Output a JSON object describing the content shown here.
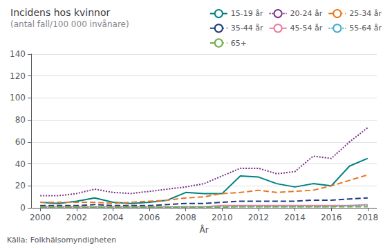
{
  "chart_data": {
    "type": "line",
    "title": "Incidens hos kvinnor",
    "subtitle": "(antal fall/100 000 invånare)",
    "xlabel": "År",
    "annotations": [
      "Källa: Folkhälsomyndigheten"
    ],
    "x": [
      2000,
      2001,
      2002,
      2003,
      2004,
      2005,
      2006,
      2007,
      2008,
      2009,
      2010,
      2011,
      2012,
      2013,
      2014,
      2015,
      2016,
      2017,
      2018
    ],
    "xlim": [
      1999.5,
      2018.5
    ],
    "xticks": [
      2000,
      2002,
      2004,
      2006,
      2008,
      2010,
      2012,
      2014,
      2016,
      2018
    ],
    "ylim": [
      0,
      140
    ],
    "yticks": [
      0,
      20,
      40,
      60,
      80,
      100,
      120,
      140
    ],
    "grid": true,
    "legend": "upper right",
    "series": [
      {
        "name": "15-19 år",
        "color": "#008080",
        "line_style": "solid",
        "values": [
          5,
          4,
          6,
          9,
          5,
          4,
          5,
          7,
          14,
          13,
          13,
          29,
          28,
          22,
          19,
          22,
          20,
          38,
          45
        ]
      },
      {
        "name": "20-24 år",
        "color": "#7B2D8B",
        "line_style": "dotted",
        "values": [
          11,
          11,
          13,
          17,
          14,
          13,
          15,
          17,
          19,
          22,
          29,
          36,
          36,
          31,
          33,
          47,
          45,
          60,
          73
        ]
      },
      {
        "name": "25-34 år",
        "color": "#E87722",
        "line_style": "dashed",
        "values": [
          5,
          5,
          5,
          5,
          4,
          5,
          6,
          7,
          9,
          10,
          13,
          14,
          16,
          14,
          15,
          16,
          20,
          25,
          30
        ]
      },
      {
        "name": "35-44 år",
        "color": "#1F3A7A",
        "line_style": "dashed",
        "values": [
          2,
          2,
          2,
          3,
          2,
          2,
          2,
          3,
          4,
          4,
          5,
          6,
          6,
          6,
          6,
          7,
          7,
          8,
          9
        ]
      },
      {
        "name": "45-54 år",
        "color": "#E87EA0",
        "line_style": "solid",
        "values": [
          1,
          1,
          1,
          1,
          1,
          1,
          1,
          1,
          1,
          1,
          2,
          2,
          2,
          2,
          2,
          2,
          2,
          2,
          3
        ]
      },
      {
        "name": "55-64 år",
        "color": "#4BACC6",
        "line_style": "dotted",
        "values": [
          0.5,
          0.5,
          0.5,
          0.5,
          0.5,
          0.5,
          0.5,
          0.5,
          1,
          1,
          1,
          1,
          1,
          1,
          1,
          1,
          1,
          2,
          2
        ]
      },
      {
        "name": "65+",
        "color": "#70AD47",
        "line_style": "dashed",
        "values": [
          0.5,
          0.5,
          0.5,
          0.5,
          0.5,
          0.5,
          0.5,
          0.5,
          0.5,
          0.5,
          0.5,
          1,
          1,
          1,
          1,
          1,
          1,
          1,
          1
        ]
      }
    ]
  }
}
